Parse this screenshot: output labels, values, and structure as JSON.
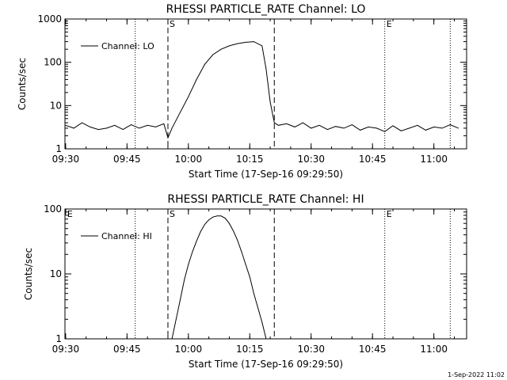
{
  "chart_data": [
    {
      "type": "line",
      "title": "RHESSI PARTICLE_RATE Channel: LO",
      "xlabel": "Start Time (17-Sep-16 09:29:50)",
      "ylabel": "Counts/sec",
      "y_scale": "log",
      "ylim": [
        1,
        1000
      ],
      "xlim": [
        "09:29:50",
        "11:08:00"
      ],
      "x_ticks": [
        "09:30",
        "09:45",
        "10:00",
        "10:15",
        "10:30",
        "10:45",
        "11:00"
      ],
      "y_ticks": [
        "1",
        "10",
        "100",
        "1000"
      ],
      "legend": "top-left",
      "grid": false,
      "series": [
        {
          "name": "Channel: LO",
          "x": [
            "09:30",
            "09:32",
            "09:34",
            "09:36",
            "09:38",
            "09:40",
            "09:42",
            "09:44",
            "09:46",
            "09:48",
            "09:50",
            "09:52",
            "09:54",
            "09:55",
            "09:56",
            "09:58",
            "10:00",
            "10:02",
            "10:04",
            "10:06",
            "10:08",
            "10:10",
            "10:12",
            "10:14",
            "10:16",
            "10:18",
            "10:19",
            "10:20",
            "10:21",
            "10:22",
            "10:24",
            "10:26",
            "10:28",
            "10:30",
            "10:32",
            "10:34",
            "10:36",
            "10:38",
            "10:40",
            "10:42",
            "10:44",
            "10:46",
            "10:48",
            "10:50",
            "10:52",
            "10:54",
            "10:56",
            "10:58",
            "11:00",
            "11:02",
            "11:04",
            "11:06"
          ],
          "values": [
            3.5,
            3.0,
            4.0,
            3.2,
            2.8,
            3.0,
            3.5,
            2.8,
            3.6,
            3.0,
            3.5,
            3.2,
            3.8,
            1.8,
            3.0,
            7,
            16,
            40,
            90,
            150,
            200,
            240,
            270,
            290,
            300,
            240,
            70,
            12,
            4,
            3.5,
            3.8,
            3.2,
            4.0,
            3.0,
            3.5,
            2.8,
            3.3,
            3.0,
            3.6,
            2.7,
            3.2,
            3.0,
            2.5,
            3.4,
            2.6,
            3.0,
            3.5,
            2.7,
            3.2,
            3.0,
            3.6,
            3.0
          ]
        }
      ],
      "vlines": {
        "dashed": [
          "09:55",
          "10:21"
        ],
        "dotted": [
          "09:47",
          "10:48",
          "11:04"
        ]
      },
      "markers": [
        {
          "label": "S",
          "at": "09:55"
        },
        {
          "label": "E",
          "at": "10:48"
        }
      ]
    },
    {
      "type": "line",
      "title": "RHESSI PARTICLE_RATE Channel: HI",
      "xlabel": "Start Time (17-Sep-16 09:29:50)",
      "ylabel": "Counts/sec",
      "y_scale": "log",
      "ylim": [
        1,
        100
      ],
      "xlim": [
        "09:29:50",
        "11:08:00"
      ],
      "x_ticks": [
        "09:30",
        "09:45",
        "10:00",
        "10:15",
        "10:30",
        "10:45",
        "11:00"
      ],
      "y_ticks": [
        "1",
        "10",
        "100"
      ],
      "legend": "top-left",
      "grid": false,
      "series": [
        {
          "name": "Channel: HI",
          "x": [
            "09:56",
            "09:57",
            "09:58",
            "09:59",
            "10:00",
            "10:01",
            "10:02",
            "10:03",
            "10:04",
            "10:05",
            "10:06",
            "10:07",
            "10:08",
            "10:09",
            "10:10",
            "10:11",
            "10:12",
            "10:13",
            "10:14",
            "10:15",
            "10:16",
            "10:17",
            "10:18",
            "10:19"
          ],
          "values": [
            1,
            2,
            4,
            8,
            14,
            22,
            32,
            45,
            58,
            68,
            75,
            78,
            78,
            72,
            60,
            46,
            33,
            22,
            14,
            9,
            5,
            3,
            1.8,
            1
          ]
        }
      ],
      "vlines": {
        "dashed": [
          "09:55",
          "10:21"
        ],
        "dotted": [
          "09:47",
          "10:48",
          "11:04"
        ]
      },
      "markers": [
        {
          "label": "E",
          "at": "09:30"
        },
        {
          "label": "S",
          "at": "09:55"
        },
        {
          "label": "E",
          "at": "10:48"
        }
      ]
    }
  ],
  "timestamp": "1-Sep-2022 11:02"
}
